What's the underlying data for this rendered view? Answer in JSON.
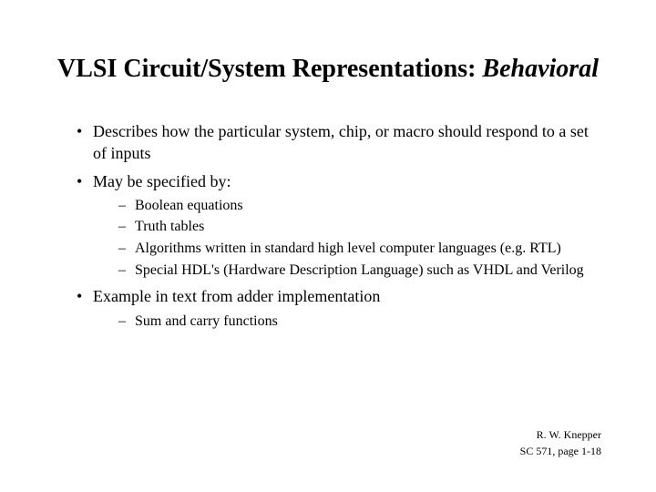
{
  "title": {
    "prefix": "VLSI Circuit/System Representations:  ",
    "suffix": "Behavioral"
  },
  "bullets": {
    "b1": "Describes how the particular system, chip, or macro should respond to a set of inputs",
    "b2": "May be specified by:",
    "b2_subs": {
      "s1": "Boolean equations",
      "s2": "Truth tables",
      "s3": "Algorithms written in standard high level computer languages (e.g. RTL)",
      "s4": "Special HDL's (Hardware Description Language) such as VHDL and Verilog"
    },
    "b3": "Example in text from adder implementation",
    "b3_subs": {
      "s1": "Sum and carry functions"
    }
  },
  "footer": {
    "author": "R. W. Knepper",
    "course": "SC 571,  page 1-18"
  },
  "styling": {
    "background_color": "#ffffff",
    "text_color": "#000000",
    "font_family": "Times New Roman",
    "title_fontsize": 28,
    "body_fontsize": 18,
    "sub_fontsize": 16,
    "footer_fontsize": 12,
    "slide_width": 720,
    "slide_height": 540
  }
}
